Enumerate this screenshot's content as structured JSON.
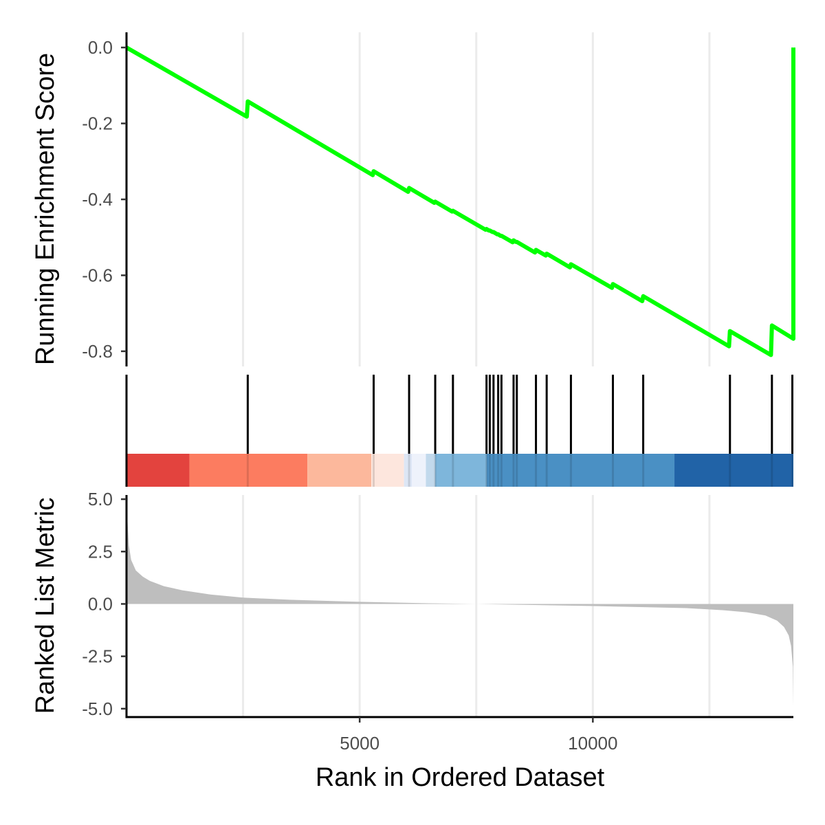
{
  "chart_data": {
    "type": "line",
    "xlabel": "Rank in Ordered Dataset",
    "xlim": [
      0,
      14300
    ],
    "x_ticks": [
      5000,
      10000
    ],
    "x_tick_labels": [
      "5000",
      "10000"
    ],
    "x_gridlines": [
      2500,
      5000,
      7500,
      10000,
      12500
    ],
    "grid": "vertical major gridlines",
    "es_panel": {
      "ylabel": "Running Enrichment Score",
      "ylim": [
        -0.84,
        0.04
      ],
      "y_ticks": [
        0.0,
        -0.2,
        -0.4,
        -0.6,
        -0.8
      ],
      "y_tick_labels": [
        "0.0",
        "-0.2",
        "-0.4",
        "-0.6",
        "-0.8"
      ],
      "line_color": "#00ff00",
      "series": [
        {
          "x": [
            0,
            2580,
            2600,
            5280,
            5300,
            6040,
            6060,
            6600,
            6620,
            6980,
            7000,
            7700,
            7720,
            7770,
            7790,
            7850,
            7870,
            7950,
            7970,
            8020,
            8040,
            8280,
            8300,
            8350,
            8370,
            8760,
            8780,
            8990,
            9010,
            9510,
            9530,
            10410,
            10430,
            11060,
            11080,
            12920,
            12940,
            13820,
            13840,
            14300,
            14300
          ],
          "y": [
            0.0,
            -0.182,
            -0.142,
            -0.336,
            -0.326,
            -0.38,
            -0.37,
            -0.409,
            -0.406,
            -0.432,
            -0.43,
            -0.48,
            -0.478,
            -0.482,
            -0.482,
            -0.486,
            -0.486,
            -0.492,
            -0.492,
            -0.496,
            -0.496,
            -0.513,
            -0.508,
            -0.512,
            -0.512,
            -0.54,
            -0.533,
            -0.548,
            -0.543,
            -0.579,
            -0.571,
            -0.633,
            -0.623,
            -0.668,
            -0.655,
            -0.787,
            -0.747,
            -0.81,
            -0.732,
            -0.767,
            0.0
          ]
        }
      ]
    },
    "hits_panel": {
      "positions": [
        2600,
        5300,
        6060,
        6620,
        7000,
        7720,
        7790,
        7870,
        7970,
        8040,
        8300,
        8370,
        8780,
        9010,
        9530,
        10430,
        11080,
        12940,
        13840,
        14300
      ],
      "color_band": [
        {
          "from": 0,
          "to": 1350,
          "color": "#e3433e"
        },
        {
          "from": 1350,
          "to": 3880,
          "color": "#fc7c60"
        },
        {
          "from": 3880,
          "to": 5250,
          "color": "#fcb89c"
        },
        {
          "from": 5250,
          "to": 5950,
          "color": "#fde6dd"
        },
        {
          "from": 5950,
          "to": 6120,
          "color": "#dde6f5"
        },
        {
          "from": 6120,
          "to": 6420,
          "color": "#eef2fb"
        },
        {
          "from": 6420,
          "to": 6620,
          "color": "#c2d9ec"
        },
        {
          "from": 6620,
          "to": 7720,
          "color": "#7eb6db"
        },
        {
          "from": 7720,
          "to": 11750,
          "color": "#4a90c4"
        },
        {
          "from": 11750,
          "to": 14300,
          "color": "#2163a7"
        }
      ]
    },
    "ranked_panel": {
      "ylabel": "Ranked List Metric",
      "ylim": [
        -5.4,
        5.2
      ],
      "y_ticks": [
        5.0,
        2.5,
        0.0,
        -2.5,
        -5.0
      ],
      "y_tick_labels": [
        "5.0",
        "2.5",
        "0.0",
        "-2.5",
        "-5.0"
      ],
      "fill_color": "#bebebe",
      "series": [
        {
          "x": [
            0,
            20,
            50,
            100,
            200,
            350,
            500,
            800,
            1200,
            1800,
            2500,
            3500,
            5000,
            6500,
            7500,
            8500,
            10000,
            11000,
            12000,
            12800,
            13300,
            13700,
            13950,
            14100,
            14200,
            14250,
            14290,
            14300
          ],
          "y": [
            5.0,
            4.0,
            2.8,
            2.1,
            1.6,
            1.3,
            1.1,
            0.85,
            0.65,
            0.45,
            0.3,
            0.2,
            0.1,
            0.03,
            0.0,
            -0.04,
            -0.1,
            -0.15,
            -0.2,
            -0.3,
            -0.4,
            -0.55,
            -0.8,
            -1.1,
            -1.5,
            -2.0,
            -3.0,
            -4.9
          ]
        }
      ]
    }
  }
}
